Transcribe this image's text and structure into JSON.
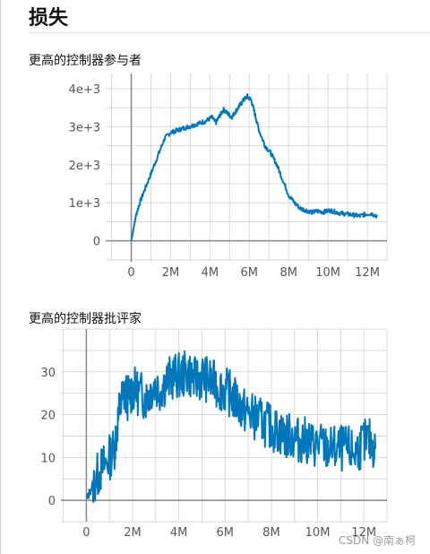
{
  "section": {
    "title": "损失"
  },
  "watermark": "CSDN @南ぁ柯",
  "colors": {
    "line": "#0077bb",
    "grid": "#d9d9d9",
    "axis": "#888888"
  },
  "chart_data": [
    {
      "type": "line",
      "title": "更高的控制器参与者",
      "xlabel": "",
      "ylabel": "",
      "xlim": [
        -1300000,
        13000000
      ],
      "ylim": [
        -550,
        4400
      ],
      "x_ticks": [
        0,
        2000000,
        4000000,
        6000000,
        8000000,
        10000000,
        12000000
      ],
      "x_tick_labels": [
        "0",
        "2M",
        "4M",
        "6M",
        "8M",
        "10M",
        "12M"
      ],
      "y_ticks": [
        0,
        1000,
        2000,
        3000,
        4000
      ],
      "y_tick_labels": [
        "0",
        "1e+3",
        "2e+3",
        "3e+3",
        "4e+3"
      ],
      "grid": true,
      "series": [
        {
          "x": [
            0,
            250000,
            500000,
            800000,
            1100000,
            1400000,
            1700000,
            2000000,
            2300000,
            2600000,
            2900000,
            3200000,
            3500000,
            3800000,
            4100000,
            4300000,
            4500000,
            4700000,
            4900000,
            5100000,
            5300000,
            5500000,
            5700000,
            5900000,
            6100000,
            6300000,
            6500000,
            6800000,
            7100000,
            7400000,
            7700000,
            8000000,
            8300000,
            8600000,
            8900000,
            9200000,
            9500000,
            9800000,
            10100000,
            10400000,
            10700000,
            11000000,
            11300000,
            11600000,
            11900000,
            12200000,
            12500000
          ],
          "y": [
            0,
            700,
            1100,
            1500,
            1900,
            2300,
            2700,
            2850,
            2900,
            2950,
            3000,
            3050,
            3100,
            3150,
            3250,
            3100,
            3300,
            3450,
            3350,
            3250,
            3400,
            3550,
            3700,
            3800,
            3700,
            3300,
            2900,
            2500,
            2300,
            2000,
            1600,
            1200,
            1000,
            850,
            800,
            750,
            780,
            760,
            800,
            760,
            720,
            700,
            680,
            650,
            700,
            720,
            650
          ]
        }
      ]
    },
    {
      "type": "line",
      "title": "更高的控制器批评家",
      "xlabel": "",
      "ylabel": "",
      "xlim": [
        -1100000,
        13000000
      ],
      "ylim": [
        -5,
        40
      ],
      "x_ticks": [
        0,
        2000000,
        4000000,
        6000000,
        8000000,
        10000000,
        12000000
      ],
      "x_tick_labels": [
        "0",
        "2M",
        "4M",
        "6M",
        "8M",
        "10M",
        "12M"
      ],
      "y_ticks": [
        0,
        10,
        20,
        30
      ],
      "y_tick_labels": [
        "0",
        "10",
        "20",
        "30"
      ],
      "grid": true,
      "series": [
        {
          "x": [
            0,
            300000,
            600000,
            900000,
            1200000,
            1400000,
            1600000,
            1800000,
            2000000,
            2300000,
            2600000,
            2900000,
            3200000,
            3500000,
            3800000,
            4100000,
            4400000,
            4700000,
            5000000,
            5300000,
            5600000,
            5900000,
            6200000,
            6500000,
            6800000,
            7100000,
            7400000,
            7700000,
            8000000,
            8300000,
            8600000,
            8900000,
            9200000,
            9500000,
            9800000,
            10100000,
            10400000,
            10700000,
            11000000,
            11300000,
            11600000,
            11900000,
            12200000,
            12500000
          ],
          "y": [
            0,
            4,
            7,
            9,
            12,
            20,
            25,
            24,
            26,
            25,
            24,
            27,
            26,
            28,
            29,
            29,
            30,
            28,
            29,
            28,
            27,
            26,
            25,
            23,
            21,
            20,
            19,
            18,
            17,
            16,
            15,
            15,
            14,
            14,
            13,
            13,
            12,
            12,
            12,
            12,
            11,
            13,
            14,
            12
          ]
        }
      ]
    }
  ]
}
